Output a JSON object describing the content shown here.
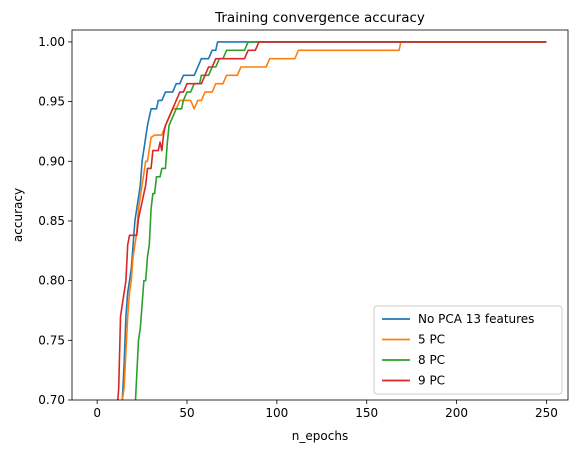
{
  "chart_data": {
    "type": "line",
    "title": "Training convergence accuracy",
    "xlabel": "n_epochs",
    "ylabel": "accuracy",
    "xlim": [
      -14,
      262
    ],
    "ylim": [
      0.7,
      1.01
    ],
    "xticks": [
      0,
      50,
      100,
      150,
      200,
      250
    ],
    "yticks": [
      0.7,
      0.75,
      0.8,
      0.85,
      0.9,
      0.95,
      1.0
    ],
    "grid": false,
    "legend_position": "lower-right",
    "series": [
      {
        "name": "No PCA 13 features",
        "color": "#1f77b4",
        "points": [
          [
            12,
            0.69
          ],
          [
            14,
            0.7
          ],
          [
            15,
            0.73
          ],
          [
            16,
            0.77
          ],
          [
            17,
            0.79
          ],
          [
            18,
            0.8
          ],
          [
            19,
            0.81
          ],
          [
            20,
            0.83
          ],
          [
            21,
            0.85
          ],
          [
            22,
            0.86
          ],
          [
            23,
            0.87
          ],
          [
            24,
            0.88
          ],
          [
            25,
            0.9
          ],
          [
            26,
            0.91
          ],
          [
            27,
            0.92
          ],
          [
            28,
            0.93
          ],
          [
            30,
            0.944
          ],
          [
            32,
            0.944
          ],
          [
            33,
            0.944
          ],
          [
            34,
            0.951
          ],
          [
            36,
            0.951
          ],
          [
            38,
            0.958
          ],
          [
            40,
            0.958
          ],
          [
            42,
            0.958
          ],
          [
            44,
            0.965
          ],
          [
            46,
            0.965
          ],
          [
            48,
            0.972
          ],
          [
            50,
            0.972
          ],
          [
            54,
            0.972
          ],
          [
            56,
            0.979
          ],
          [
            58,
            0.986
          ],
          [
            62,
            0.986
          ],
          [
            64,
            0.993
          ],
          [
            66,
            0.993
          ],
          [
            67,
            1.0
          ],
          [
            250,
            1.0
          ]
        ]
      },
      {
        "name": "5 PC",
        "color": "#ff7f0e",
        "points": [
          [
            13,
            0.69
          ],
          [
            15,
            0.71
          ],
          [
            16,
            0.74
          ],
          [
            17,
            0.77
          ],
          [
            18,
            0.79
          ],
          [
            19,
            0.8
          ],
          [
            20,
            0.82
          ],
          [
            22,
            0.84
          ],
          [
            23,
            0.86
          ],
          [
            24,
            0.87
          ],
          [
            25,
            0.88
          ],
          [
            26,
            0.89
          ],
          [
            27,
            0.9
          ],
          [
            28,
            0.9
          ],
          [
            29,
            0.91
          ],
          [
            30,
            0.92
          ],
          [
            32,
            0.922
          ],
          [
            34,
            0.922
          ],
          [
            36,
            0.922
          ],
          [
            38,
            0.93
          ],
          [
            40,
            0.937
          ],
          [
            42,
            0.944
          ],
          [
            44,
            0.944
          ],
          [
            46,
            0.951
          ],
          [
            50,
            0.951
          ],
          [
            52,
            0.951
          ],
          [
            54,
            0.944
          ],
          [
            56,
            0.951
          ],
          [
            58,
            0.951
          ],
          [
            60,
            0.958
          ],
          [
            64,
            0.958
          ],
          [
            66,
            0.965
          ],
          [
            70,
            0.965
          ],
          [
            72,
            0.972
          ],
          [
            78,
            0.972
          ],
          [
            80,
            0.979
          ],
          [
            94,
            0.979
          ],
          [
            96,
            0.986
          ],
          [
            110,
            0.986
          ],
          [
            112,
            0.993
          ],
          [
            168,
            0.993
          ],
          [
            169,
            1.0
          ],
          [
            250,
            1.0
          ]
        ]
      },
      {
        "name": "8 PC",
        "color": "#2ca02c",
        "points": [
          [
            21,
            0.69
          ],
          [
            22,
            0.72
          ],
          [
            23,
            0.75
          ],
          [
            24,
            0.76
          ],
          [
            25,
            0.78
          ],
          [
            26,
            0.8
          ],
          [
            27,
            0.8
          ],
          [
            28,
            0.82
          ],
          [
            29,
            0.83
          ],
          [
            30,
            0.86
          ],
          [
            31,
            0.873
          ],
          [
            32,
            0.873
          ],
          [
            33,
            0.887
          ],
          [
            35,
            0.887
          ],
          [
            36,
            0.894
          ],
          [
            38,
            0.894
          ],
          [
            39,
            0.915
          ],
          [
            40,
            0.93
          ],
          [
            42,
            0.937
          ],
          [
            44,
            0.944
          ],
          [
            47,
            0.944
          ],
          [
            48,
            0.951
          ],
          [
            50,
            0.958
          ],
          [
            52,
            0.958
          ],
          [
            54,
            0.965
          ],
          [
            57,
            0.965
          ],
          [
            58,
            0.972
          ],
          [
            60,
            0.972
          ],
          [
            62,
            0.972
          ],
          [
            64,
            0.979
          ],
          [
            66,
            0.979
          ],
          [
            68,
            0.986
          ],
          [
            70,
            0.986
          ],
          [
            72,
            0.993
          ],
          [
            82,
            0.993
          ],
          [
            84,
            1.0
          ],
          [
            250,
            1.0
          ]
        ]
      },
      {
        "name": "9 PC",
        "color": "#d62728",
        "points": [
          [
            11,
            0.69
          ],
          [
            12,
            0.71
          ],
          [
            13,
            0.77
          ],
          [
            14,
            0.78
          ],
          [
            15,
            0.79
          ],
          [
            16,
            0.8
          ],
          [
            17,
            0.83
          ],
          [
            18,
            0.838
          ],
          [
            20,
            0.838
          ],
          [
            22,
            0.838
          ],
          [
            23,
            0.852
          ],
          [
            24,
            0.859
          ],
          [
            25,
            0.866
          ],
          [
            26,
            0.873
          ],
          [
            27,
            0.88
          ],
          [
            28,
            0.894
          ],
          [
            30,
            0.894
          ],
          [
            31,
            0.909
          ],
          [
            34,
            0.909
          ],
          [
            35,
            0.916
          ],
          [
            36,
            0.909
          ],
          [
            37,
            0.923
          ],
          [
            38,
            0.93
          ],
          [
            40,
            0.937
          ],
          [
            42,
            0.944
          ],
          [
            44,
            0.951
          ],
          [
            46,
            0.958
          ],
          [
            48,
            0.958
          ],
          [
            50,
            0.965
          ],
          [
            58,
            0.965
          ],
          [
            60,
            0.972
          ],
          [
            62,
            0.979
          ],
          [
            64,
            0.979
          ],
          [
            66,
            0.986
          ],
          [
            68,
            0.986
          ],
          [
            70,
            0.986
          ],
          [
            72,
            0.986
          ],
          [
            74,
            0.986
          ],
          [
            76,
            0.986
          ],
          [
            78,
            0.986
          ],
          [
            80,
            0.986
          ],
          [
            82,
            0.986
          ],
          [
            84,
            0.993
          ],
          [
            88,
            0.993
          ],
          [
            90,
            1.0
          ],
          [
            250,
            1.0
          ]
        ]
      }
    ]
  }
}
